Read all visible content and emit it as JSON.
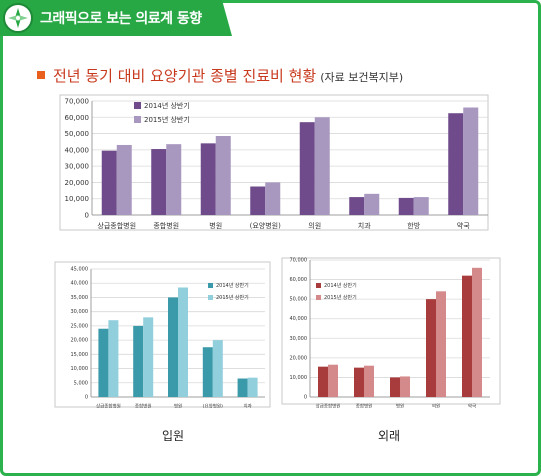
{
  "header": {
    "title": "그래픽으로 보는 의료계 동향",
    "icon": "compass-icon",
    "accent": "#27a845"
  },
  "heading": {
    "title": "전년 동기 대비 요양기관 종별 진료비 현황",
    "source": "(자료 보건복지부)"
  },
  "captions": {
    "inpatient": "입원",
    "outpatient": "외래"
  },
  "chart_data": [
    {
      "type": "bar",
      "categories": [
        "상급종합병원",
        "종합병원",
        "병원",
        "(요양병원)",
        "의원",
        "치과",
        "한방",
        "약국"
      ],
      "series": [
        {
          "name": "2014년 상반기",
          "color": "#6f4b8b",
          "values": [
            39500,
            40500,
            44000,
            17500,
            57000,
            11000,
            10500,
            62500
          ]
        },
        {
          "name": "2015년 상반기",
          "color": "#a898c0",
          "values": [
            43000,
            43500,
            48500,
            20000,
            60000,
            13000,
            11000,
            66000
          ]
        }
      ],
      "ylim": [
        0,
        70000
      ],
      "yticks": [
        "0",
        "10,000",
        "20,000",
        "30,000",
        "40,000",
        "50,000",
        "60,000",
        "70,000"
      ],
      "legend": "top-left",
      "grid": true
    },
    {
      "type": "bar",
      "categories": [
        "상급종합병원",
        "종합병원",
        "병원",
        "(요양병원)",
        "치과"
      ],
      "series": [
        {
          "name": "2014년 상반기",
          "color": "#3a9aaa",
          "values": [
            24000,
            25000,
            35000,
            17500,
            6500
          ]
        },
        {
          "name": "2015년 상반기",
          "color": "#92cfdc",
          "values": [
            27000,
            28000,
            38500,
            20000,
            6800
          ]
        }
      ],
      "ylim": [
        0,
        45000
      ],
      "yticks": [
        "0",
        "5,000",
        "10,000",
        "15,000",
        "20,000",
        "25,000",
        "30,000",
        "35,000",
        "40,000",
        "45,000"
      ],
      "legend": "top-right",
      "grid": true
    },
    {
      "type": "bar",
      "categories": [
        "상급종합병원",
        "종합병원",
        "병원",
        "의원",
        "약국"
      ],
      "series": [
        {
          "name": "2014년 상반기",
          "color": "#a83c3c",
          "values": [
            15500,
            15000,
            10000,
            50000,
            62000
          ]
        },
        {
          "name": "2015년 상반기",
          "color": "#d48a8a",
          "values": [
            16500,
            16000,
            10500,
            54000,
            66000
          ]
        }
      ],
      "ylim": [
        0,
        70000
      ],
      "yticks": [
        "0",
        "10,000",
        "20,000",
        "30,000",
        "40,000",
        "50,000",
        "60,000",
        "70,000"
      ],
      "legend": "top-left",
      "grid": true
    }
  ]
}
